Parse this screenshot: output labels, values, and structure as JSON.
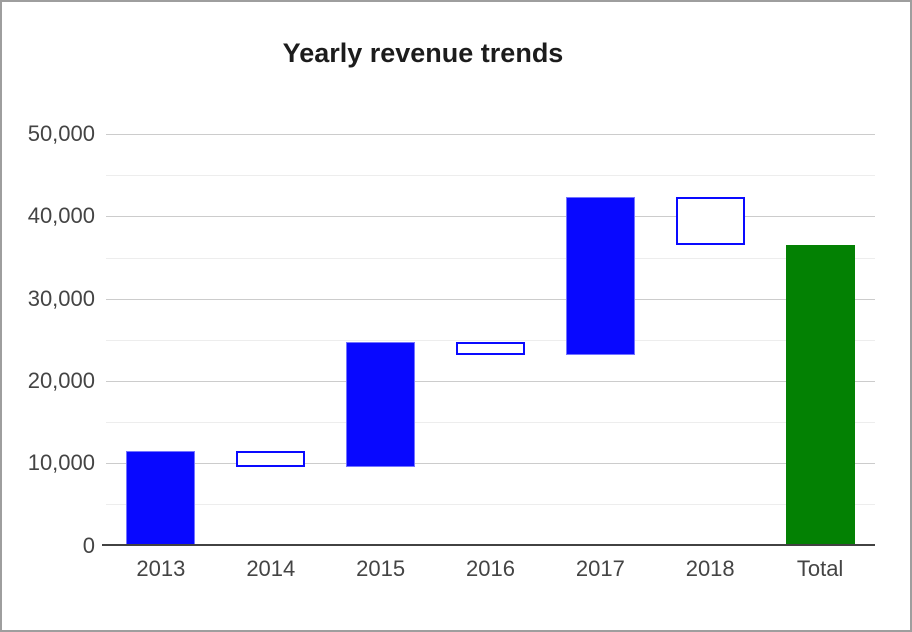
{
  "window": {
    "background": "#ffffff",
    "border_color": "#9e9e9e"
  },
  "chart_data": {
    "type": "waterfall",
    "title": "Yearly revenue trends",
    "categories": [
      "2013",
      "2014",
      "2015",
      "2016",
      "2017",
      "2018",
      "Total"
    ],
    "series": [
      {
        "name": "2013",
        "start": 0,
        "end": 11500,
        "kind": "rise"
      },
      {
        "name": "2014",
        "start": 11500,
        "end": 9500,
        "kind": "fall"
      },
      {
        "name": "2015",
        "start": 9500,
        "end": 24700,
        "kind": "rise"
      },
      {
        "name": "2016",
        "start": 24700,
        "end": 23100,
        "kind": "fall"
      },
      {
        "name": "2017",
        "start": 23100,
        "end": 42400,
        "kind": "rise"
      },
      {
        "name": "2018",
        "start": 42400,
        "end": 36500,
        "kind": "fall"
      },
      {
        "name": "Total",
        "start": 0,
        "end": 36500,
        "kind": "total"
      }
    ],
    "y_axis": {
      "min": 0,
      "max": 50000,
      "major_step": 10000,
      "minor_step": 5000,
      "tick_labels": [
        "0",
        "10,000",
        "20,000",
        "30,000",
        "40,000",
        "50,000"
      ]
    },
    "xlabel": "",
    "ylabel": "",
    "grid": true,
    "legend": "none",
    "colors": {
      "rise_fill": "#0808ff",
      "fall_border": "#0a0aff",
      "fall_fill": "#ffffff",
      "total_fill": "#038103",
      "gridline_major": "#cccccc",
      "gridline_minor": "#ededed",
      "axis_line": "#424242",
      "tick_label": "#444444",
      "title": "#1c1c1c"
    }
  }
}
